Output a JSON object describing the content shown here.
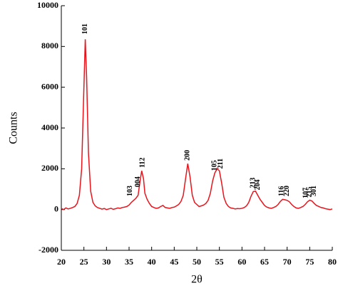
{
  "chart_data": {
    "type": "line",
    "xlabel": "2θ",
    "ylabel": "Counts",
    "x": [
      20,
      20.5,
      21,
      21.5,
      22,
      22.5,
      23,
      23.5,
      24,
      24.5,
      25,
      25.3,
      25.6,
      26,
      26.5,
      27,
      27.5,
      28,
      28.5,
      29,
      29.5,
      30,
      30.5,
      31,
      31.5,
      32,
      32.5,
      33,
      33.5,
      34,
      34.5,
      35,
      35.5,
      36,
      36.5,
      37,
      37.5,
      37.8,
      38.2,
      38.5,
      39,
      39.5,
      40,
      40.5,
      41,
      41.5,
      42,
      42.5,
      43,
      43.5,
      44,
      44.5,
      45,
      45.5,
      46,
      46.5,
      47,
      47.5,
      48,
      48.5,
      49,
      49.5,
      50,
      50.5,
      51,
      51.5,
      52,
      52.5,
      53,
      53.5,
      54,
      54.5,
      55,
      55.5,
      56,
      56.5,
      57,
      57.5,
      58,
      58.5,
      59,
      59.5,
      60,
      60.5,
      61,
      61.5,
      62,
      62.5,
      63,
      63.5,
      64,
      64.5,
      65,
      65.5,
      66,
      66.5,
      67,
      67.5,
      68,
      68.5,
      69,
      69.5,
      70,
      70.5,
      71,
      71.5,
      72,
      72.5,
      73,
      73.5,
      74,
      74.5,
      75,
      75.5,
      76,
      76.5,
      77,
      77.5,
      78,
      78.5,
      79,
      79.5,
      80
    ],
    "series": [
      {
        "color": "#e8141c",
        "values": [
          50,
          0,
          80,
          30,
          60,
          100,
          150,
          300,
          700,
          2000,
          6000,
          8350,
          6500,
          2800,
          900,
          350,
          180,
          100,
          60,
          20,
          50,
          0,
          30,
          60,
          10,
          40,
          80,
          60,
          100,
          120,
          150,
          220,
          350,
          450,
          550,
          700,
          1500,
          1900,
          1500,
          800,
          500,
          300,
          150,
          100,
          60,
          80,
          150,
          200,
          100,
          80,
          60,
          100,
          120,
          180,
          250,
          400,
          700,
          1500,
          2250,
          1600,
          700,
          350,
          250,
          150,
          180,
          220,
          300,
          450,
          800,
          1400,
          1800,
          2000,
          1900,
          1300,
          600,
          300,
          150,
          80,
          60,
          30,
          50,
          40,
          60,
          100,
          180,
          350,
          650,
          880,
          900,
          700,
          500,
          350,
          200,
          120,
          80,
          60,
          100,
          150,
          250,
          400,
          500,
          480,
          450,
          380,
          250,
          150,
          80,
          60,
          100,
          150,
          250,
          380,
          460,
          420,
          300,
          200,
          150,
          100,
          80,
          40,
          20,
          0,
          30
        ]
      }
    ],
    "xlim": [
      20,
      80
    ],
    "xticks": [
      20,
      25,
      30,
      35,
      40,
      45,
      50,
      55,
      60,
      65,
      70,
      75,
      80
    ],
    "ylim": [
      -2000,
      10000
    ],
    "yticks": [
      -2000,
      0,
      2000,
      4000,
      6000,
      8000,
      10000
    ],
    "annotations": [
      {
        "text": "101",
        "x": 25.3,
        "y": 8600
      },
      {
        "text": "103",
        "x": 35.3,
        "y": 650
      },
      {
        "text": "004",
        "x": 37.0,
        "y": 1100
      },
      {
        "text": "112",
        "x": 38.0,
        "y": 2050
      },
      {
        "text": "200",
        "x": 48.0,
        "y": 2400
      },
      {
        "text": "105",
        "x": 54.0,
        "y": 1900
      },
      {
        "text": "211",
        "x": 55.3,
        "y": 2000
      },
      {
        "text": "213",
        "x": 62.5,
        "y": 1050
      },
      {
        "text": "204",
        "x": 63.5,
        "y": 950
      },
      {
        "text": "116",
        "x": 68.8,
        "y": 650
      },
      {
        "text": "220",
        "x": 70.0,
        "y": 650
      },
      {
        "text": "107",
        "x": 74.2,
        "y": 550
      },
      {
        "text": "215",
        "x": 75.0,
        "y": 600
      },
      {
        "text": "301",
        "x": 76.0,
        "y": 650
      }
    ]
  }
}
